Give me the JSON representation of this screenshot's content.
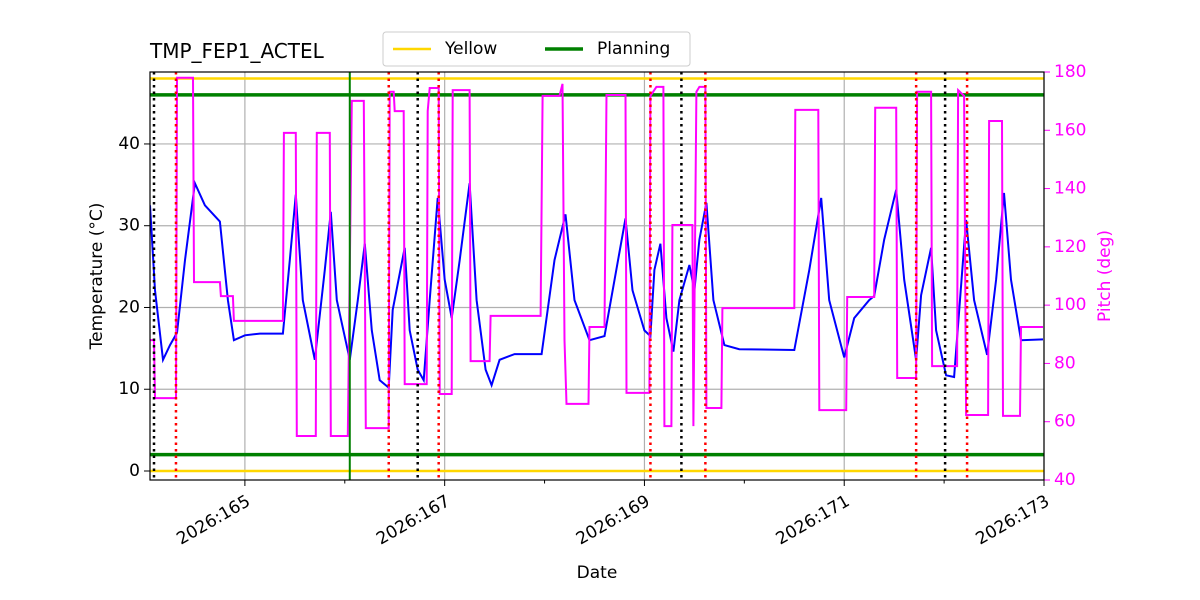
{
  "chart_data": {
    "type": "line",
    "title": "TMP_FEP1_ACTEL",
    "xlabel": "Date",
    "ylabel": "Temperature (°C)",
    "y2label": "Pitch (deg)",
    "y2color": "#ff00ff",
    "xlim": [
      164.05,
      173
    ],
    "ylim": [
      -1.1,
      48.8
    ],
    "y2lim": [
      40,
      180
    ],
    "xticks": [
      {
        "value": 165,
        "label": "2026:165"
      },
      {
        "value": 167,
        "label": "2026:167"
      },
      {
        "value": 169,
        "label": "2026:169"
      },
      {
        "value": 171,
        "label": "2026:171"
      },
      {
        "value": 173,
        "label": "2026:173"
      }
    ],
    "xminorticks": [
      166,
      168,
      170,
      172
    ],
    "yticks": [
      0,
      10,
      20,
      30,
      40
    ],
    "y2ticks": [
      40,
      60,
      80,
      100,
      120,
      140,
      160,
      180
    ],
    "grid": true,
    "legend": "top",
    "limits": [
      {
        "name": "Yellow",
        "color": "#ffd700",
        "values": [
          0,
          48
        ]
      },
      {
        "name": "Planning",
        "color": "#008000",
        "values": [
          2,
          46
        ]
      }
    ],
    "vlines": [
      {
        "color": "#000000",
        "style": "dotted",
        "x": [
          164.09,
          166.73,
          169.37,
          172.01
        ]
      },
      {
        "color": "#ff0000",
        "style": "dotted",
        "x": [
          164.31,
          166.44,
          166.94,
          169.06,
          169.61,
          171.72,
          172.23
        ]
      },
      {
        "color": "#008000",
        "style": "solid",
        "x": [
          166.05
        ]
      }
    ],
    "series": [
      {
        "color": "#0000ff",
        "x": [
          164.05,
          164.1,
          164.18,
          164.25,
          164.32,
          164.4,
          164.5,
          164.6,
          164.75,
          164.83,
          164.89,
          165.0,
          165.15,
          165.38,
          165.45,
          165.51,
          165.58,
          165.7,
          165.8,
          165.86,
          165.92,
          166.05,
          166.13,
          166.2,
          166.27,
          166.35,
          166.44,
          166.48,
          166.6,
          166.65,
          166.73,
          166.79,
          166.85,
          166.93,
          167.0,
          167.07,
          167.15,
          167.25,
          167.32,
          167.41,
          167.47,
          167.55,
          167.7,
          167.97,
          168.1,
          168.21,
          168.3,
          168.45,
          168.6,
          168.81,
          168.88,
          169.0,
          169.06,
          169.1,
          169.16,
          169.22,
          169.29,
          169.35,
          169.45,
          169.5,
          169.55,
          169.62,
          169.69,
          169.8,
          169.95,
          170.5,
          170.65,
          170.77,
          170.85,
          171.0,
          171.1,
          171.25,
          171.3,
          171.4,
          171.52,
          171.6,
          171.72,
          171.77,
          171.87,
          171.92,
          172.02,
          172.1,
          172.22,
          172.3,
          172.43,
          172.52,
          172.6,
          172.67,
          172.77,
          172.99
        ],
        "values": [
          32.5,
          22.1,
          13.6,
          15.4,
          16.9,
          25.8,
          35.2,
          32.5,
          30.5,
          20.9,
          16.0,
          16.6,
          16.8,
          16.8,
          25.8,
          33.8,
          20.9,
          13.6,
          24.6,
          31.7,
          20.9,
          13.6,
          20.9,
          27.8,
          17.2,
          11.1,
          10.2,
          19.7,
          27.3,
          17.2,
          12.4,
          11.1,
          20.9,
          33.4,
          23.4,
          18.7,
          25.8,
          35.2,
          20.9,
          12.4,
          10.5,
          13.6,
          14.3,
          14.3,
          25.8,
          31.4,
          20.9,
          16.0,
          16.5,
          30.9,
          22.1,
          17.2,
          16.5,
          24.6,
          27.8,
          18.7,
          14.6,
          20.9,
          25.2,
          22.1,
          28.3,
          32.8,
          20.9,
          15.4,
          14.9,
          14.8,
          24.6,
          33.4,
          20.9,
          13.9,
          18.7,
          20.9,
          21.4,
          28.3,
          34.4,
          23.4,
          13.6,
          21.5,
          27.3,
          17.2,
          11.7,
          11.5,
          30.7,
          20.9,
          14.2,
          23.4,
          34.0,
          23.4,
          16.0,
          16.1
        ]
      },
      {
        "color": "#ff00ff",
        "axis": "y2",
        "x": [
          164.05,
          164.09,
          164.1,
          164.31,
          164.32,
          164.48,
          164.49,
          164.75,
          164.76,
          164.88,
          164.89,
          165.38,
          165.39,
          165.51,
          165.52,
          165.71,
          165.72,
          165.85,
          165.86,
          166.03,
          166.07,
          166.19,
          166.21,
          166.44,
          166.45,
          166.49,
          166.5,
          166.59,
          166.6,
          166.82,
          166.83,
          166.85,
          166.94,
          166.95,
          167.07,
          167.08,
          167.25,
          167.26,
          167.45,
          167.46,
          167.96,
          167.98,
          168.15,
          168.18,
          168.2,
          168.22,
          168.44,
          168.45,
          168.6,
          168.62,
          168.81,
          168.82,
          169.05,
          169.06,
          169.12,
          169.19,
          169.2,
          169.27,
          169.28,
          169.48,
          169.49,
          169.52,
          169.55,
          169.61,
          169.62,
          169.77,
          169.78,
          170.5,
          170.51,
          170.74,
          170.75,
          171.02,
          171.03,
          171.3,
          171.31,
          171.52,
          171.53,
          171.72,
          171.73,
          171.87,
          171.88,
          172.13,
          172.14,
          172.2,
          172.22,
          172.44,
          172.45,
          172.58,
          172.59,
          172.76,
          172.77,
          172.99
        ],
        "values": [
          88.0,
          88.0,
          68.1,
          68.1,
          178.0,
          178.0,
          107.9,
          107.9,
          103.1,
          103.1,
          94.6,
          94.6,
          159.1,
          159.1,
          55.1,
          55.1,
          159.1,
          159.1,
          55.1,
          55.1,
          170.1,
          170.1,
          57.8,
          57.8,
          173.2,
          173.2,
          166.6,
          166.6,
          72.9,
          72.9,
          166.6,
          174.5,
          174.5,
          69.5,
          69.5,
          173.8,
          173.8,
          80.8,
          80.8,
          96.3,
          96.3,
          171.8,
          171.8,
          175.9,
          88.0,
          66.1,
          66.1,
          92.5,
          92.5,
          172.1,
          172.1,
          69.9,
          69.9,
          171.8,
          174.9,
          174.9,
          58.5,
          58.5,
          127.5,
          127.5,
          58.5,
          173.2,
          174.9,
          174.9,
          64.7,
          64.7,
          99.0,
          99.0,
          167.0,
          167.0,
          64.0,
          64.0,
          102.8,
          102.8,
          167.7,
          167.7,
          75.0,
          75.0,
          173.2,
          173.2,
          79.1,
          79.1,
          173.8,
          171.8,
          62.3,
          62.3,
          163.2,
          163.2,
          62.0,
          62.0,
          92.5,
          92.5
        ]
      }
    ]
  }
}
